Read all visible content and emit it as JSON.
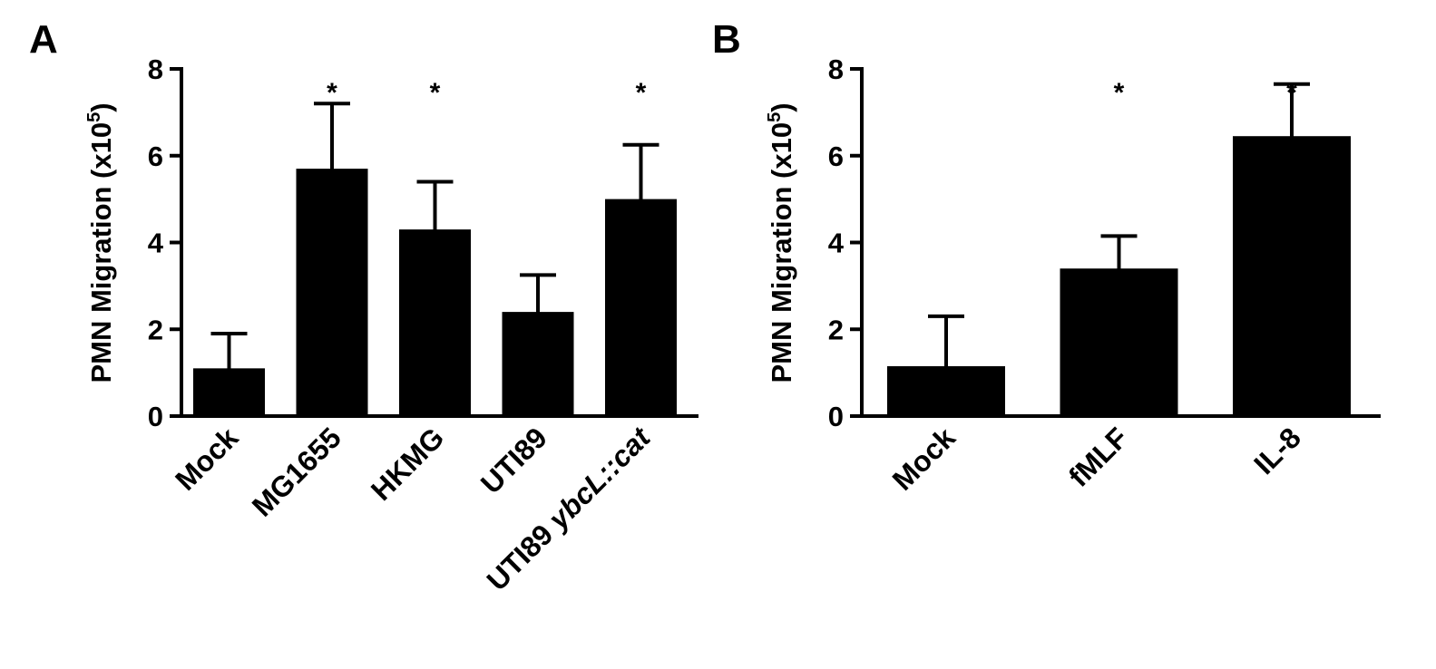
{
  "chart_data": [
    {
      "panel_label": "A",
      "type": "bar",
      "ylabel": "PMN Migration (x10",
      "ylabel_sup": "5",
      "ylabel_close": ")",
      "ylim": [
        0,
        8
      ],
      "yticks": [
        "0",
        "2",
        "4",
        "6",
        "8"
      ],
      "categories": [
        {
          "parts": [
            {
              "text": "Mock",
              "italic": false
            }
          ]
        },
        {
          "parts": [
            {
              "text": "MG1655",
              "italic": false
            }
          ]
        },
        {
          "parts": [
            {
              "text": "HKMG",
              "italic": false
            }
          ]
        },
        {
          "parts": [
            {
              "text": "UTI89",
              "italic": false
            }
          ]
        },
        {
          "parts": [
            {
              "text": "UTI89 ",
              "italic": false
            },
            {
              "text": "ybcL::cat",
              "italic": true
            }
          ]
        }
      ],
      "values": [
        1.1,
        5.7,
        4.3,
        2.4,
        5.0
      ],
      "errors": [
        0.8,
        1.5,
        1.1,
        0.85,
        1.25
      ],
      "significance": [
        "",
        "*",
        "*",
        "",
        "*"
      ],
      "bar_color": "#000000"
    },
    {
      "panel_label": "B",
      "type": "bar",
      "ylabel": "PMN Migration (x10",
      "ylabel_sup": "5",
      "ylabel_close": ")",
      "ylim": [
        0,
        8
      ],
      "yticks": [
        "0",
        "2",
        "4",
        "6",
        "8"
      ],
      "categories": [
        {
          "parts": [
            {
              "text": "Mock",
              "italic": false
            }
          ]
        },
        {
          "parts": [
            {
              "text": "fMLF",
              "italic": false
            }
          ]
        },
        {
          "parts": [
            {
              "text": "IL-8",
              "italic": false
            }
          ]
        }
      ],
      "values": [
        1.15,
        3.4,
        6.45
      ],
      "errors": [
        1.15,
        0.75,
        1.2
      ],
      "significance": [
        "",
        "*",
        "*"
      ],
      "bar_color": "#000000"
    }
  ]
}
